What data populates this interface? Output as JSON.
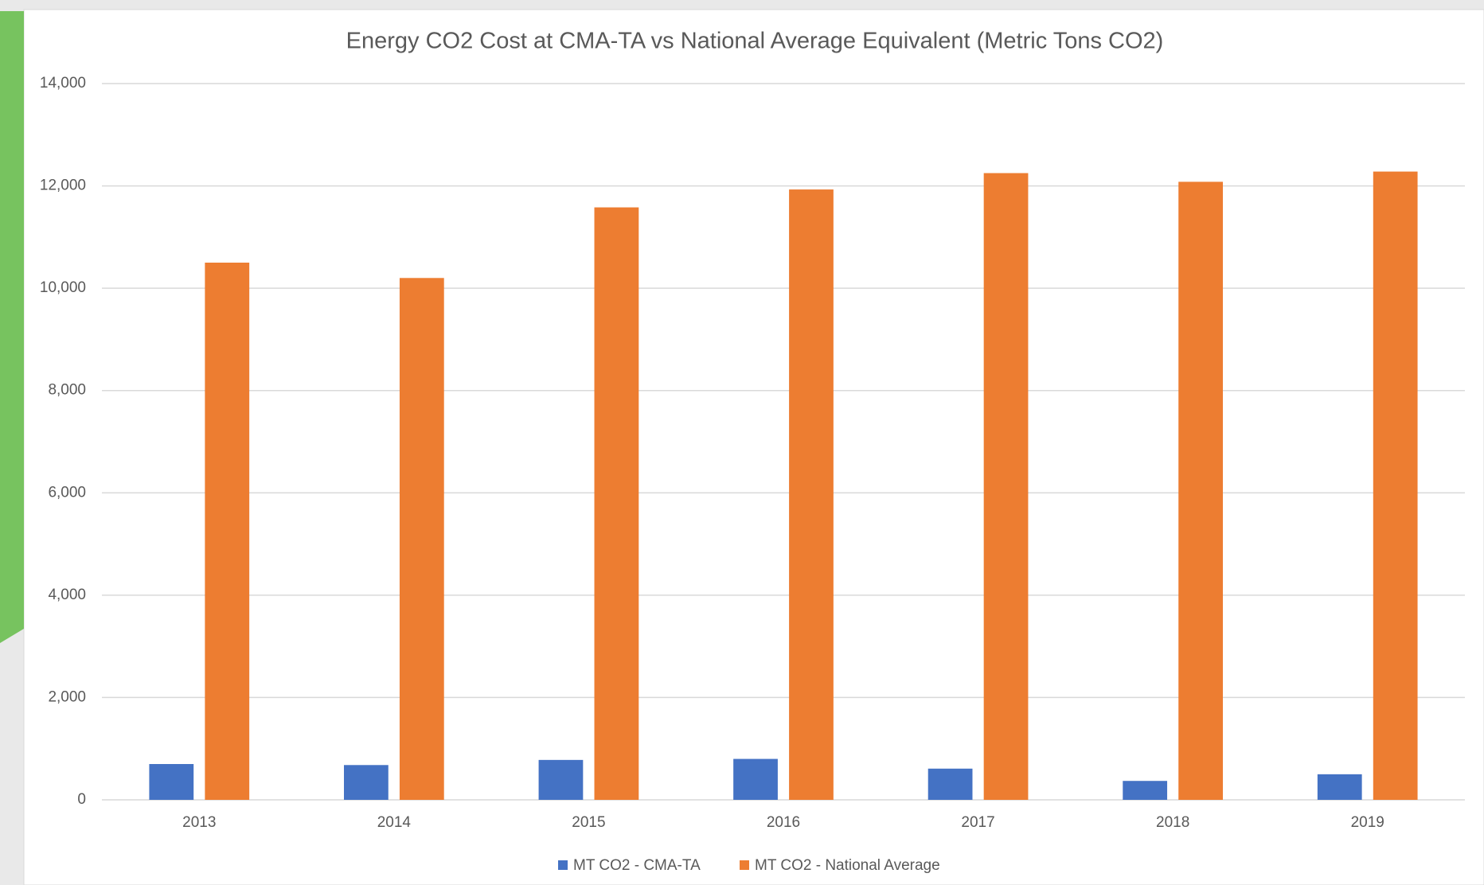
{
  "chart_data": {
    "type": "bar",
    "title": "Energy CO2 Cost at CMA-TA vs National Average Equivalent (Metric Tons CO2)",
    "categories": [
      "2013",
      "2014",
      "2015",
      "2016",
      "2017",
      "2018",
      "2019"
    ],
    "series": [
      {
        "name": "MT CO2 - CMA-TA",
        "color": "#4472c4",
        "values": [
          700,
          680,
          780,
          800,
          610,
          370,
          500
        ]
      },
      {
        "name": "MT CO2 - National Average",
        "color": "#ed7d31",
        "values": [
          10500,
          10200,
          11580,
          11930,
          12250,
          12080,
          12280
        ]
      }
    ],
    "ylim": [
      0,
      14000
    ],
    "yticks": [
      0,
      {
        "value": 2000,
        "label": "2,000"
      },
      {
        "value": 4000,
        "label": "4,000"
      },
      {
        "value": 6000,
        "label": "6,000"
      },
      {
        "value": 8000,
        "label": "8,000"
      },
      {
        "value": 10000,
        "label": "10,000"
      },
      {
        "value": 12000,
        "label": "12,000"
      },
      {
        "value": 14000,
        "label": "14,000"
      }
    ],
    "grid": true,
    "legend": "bottom"
  }
}
